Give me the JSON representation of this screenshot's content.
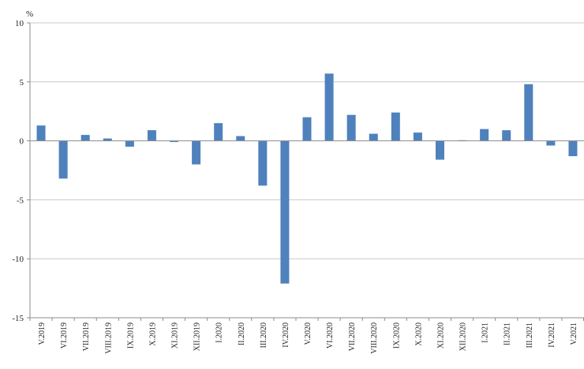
{
  "chart_data": {
    "type": "bar",
    "title": "",
    "xlabel": "",
    "ylabel": "%",
    "ylim": [
      -15,
      10
    ],
    "yticks": [
      10,
      5,
      0,
      -5,
      -10,
      -15
    ],
    "grid": true,
    "legend": "none",
    "bar_color": "#4f81bd",
    "grid_color": "#c8c8c8",
    "axis_color": "#8c8c8c",
    "categories": [
      "V.2019",
      "VI.2019",
      "VII.2019",
      "VIII.2019",
      "IX.2019",
      "X.2019",
      "XI.2019",
      "XII.2019",
      "I.2020",
      "II.2020",
      "III.2020",
      "IV.2020",
      "V.2020",
      "VI.2020",
      "VII.2020",
      "VIII.2020",
      "IX.2020",
      "X.2020",
      "XI.2020",
      "XII.2020",
      "I.2021",
      "II.2021",
      "III.2021",
      "IV.2021",
      "V.2021"
    ],
    "values": [
      1.3,
      -3.2,
      0.5,
      0.2,
      -0.5,
      0.9,
      -0.1,
      -2.0,
      1.5,
      0.4,
      -3.8,
      -12.1,
      2.0,
      5.7,
      2.2,
      0.6,
      2.4,
      0.7,
      -1.6,
      0.05,
      1.0,
      0.9,
      4.8,
      -0.4,
      -1.3
    ]
  }
}
